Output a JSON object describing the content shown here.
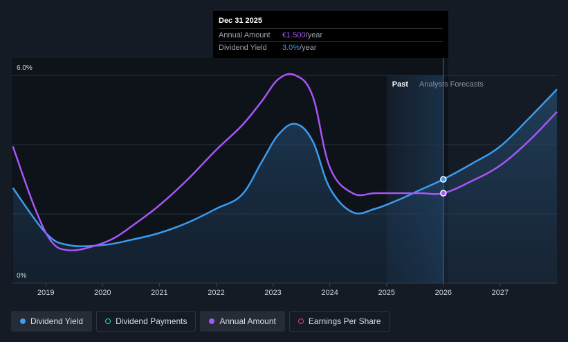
{
  "tooltip": {
    "date": "Dec 31 2025",
    "rows": [
      {
        "label": "Annual Amount",
        "value": "€1.500",
        "unit": "/year"
      },
      {
        "label": "Dividend Yield",
        "value": "3.0%",
        "unit": "/year"
      }
    ]
  },
  "regions": {
    "past": "Past",
    "forecast": "Analysts Forecasts"
  },
  "legend": [
    {
      "label": "Dividend Yield",
      "color": "#3b9cf0",
      "style": "filled"
    },
    {
      "label": "Dividend Payments",
      "color": "#2dd4bf",
      "style": "outline"
    },
    {
      "label": "Annual Amount",
      "color": "#a855f7",
      "style": "filled"
    },
    {
      "label": "Earnings Per Share",
      "color": "#e0457b",
      "style": "outline"
    }
  ],
  "colors": {
    "yield": "#3b9cf0",
    "amount": "#a855f7",
    "background": "#151b24",
    "grid": "#2a313b"
  },
  "chart_data": {
    "type": "line",
    "y_tick_labels": [
      "6.0%",
      "0%"
    ],
    "ylim": [
      0,
      6
    ],
    "xlim": [
      2018.4,
      2028.0
    ],
    "x_tick_labels": [
      "2019",
      "2020",
      "2021",
      "2022",
      "2023",
      "2024",
      "2025",
      "2026",
      "2027"
    ],
    "x_ticks": [
      2019,
      2020,
      2021,
      2022,
      2023,
      2024,
      2025,
      2026,
      2027
    ],
    "past_end": 2026.0,
    "forecast_shade_start": 2025.0,
    "grid": true,
    "series": [
      {
        "name": "Dividend Yield",
        "color": "#3b9cf0",
        "area": true,
        "x": [
          2018.42,
          2019.0,
          2019.4,
          2020.0,
          2020.5,
          2021.0,
          2021.5,
          2022.0,
          2022.45,
          2022.8,
          2023.1,
          2023.4,
          2023.7,
          2024.0,
          2024.4,
          2024.8,
          2025.2,
          2025.6,
          2026.0,
          2026.5,
          2027.0,
          2027.5,
          2028.0
        ],
        "y": [
          2.75,
          1.45,
          1.1,
          1.1,
          1.25,
          1.45,
          1.75,
          2.15,
          2.55,
          3.5,
          4.3,
          4.6,
          4.1,
          2.75,
          2.05,
          2.15,
          2.4,
          2.7,
          3.0,
          3.45,
          3.95,
          4.75,
          5.6
        ]
      },
      {
        "name": "Annual Amount",
        "color": "#a855f7",
        "area": false,
        "x": [
          2018.42,
          2018.8,
          2019.1,
          2019.4,
          2019.8,
          2020.2,
          2020.6,
          2021.0,
          2021.5,
          2022.0,
          2022.45,
          2022.8,
          2023.1,
          2023.4,
          2023.7,
          2024.0,
          2024.4,
          2024.8,
          2025.2,
          2025.6,
          2026.0,
          2026.5,
          2027.0,
          2027.5,
          2028.0
        ],
        "y": [
          3.95,
          2.2,
          1.2,
          0.95,
          1.05,
          1.3,
          1.75,
          2.25,
          3.0,
          3.85,
          4.55,
          5.25,
          5.9,
          6.0,
          5.4,
          3.35,
          2.6,
          2.6,
          2.6,
          2.6,
          2.6,
          2.95,
          3.4,
          4.1,
          4.95
        ]
      }
    ],
    "markers": [
      {
        "series": "Dividend Yield",
        "x": 2026.0,
        "y": 3.0
      },
      {
        "series": "Annual Amount",
        "x": 2026.0,
        "y": 2.6
      }
    ]
  }
}
